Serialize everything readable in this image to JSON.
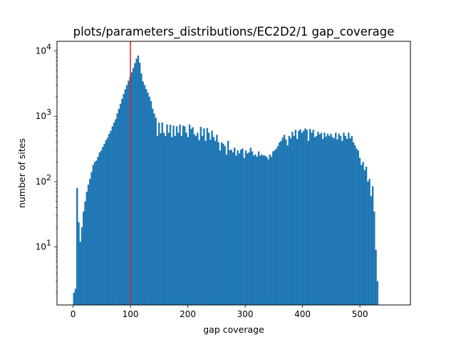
{
  "chart_data": {
    "type": "bar",
    "title": "plots/parameters_distributions/EC2D2/1 gap_coverage",
    "xlabel": "gap coverage",
    "ylabel": "number of sites",
    "y_scale": "log",
    "xlim": [
      -28,
      588
    ],
    "ylim": [
      1.3,
      14000
    ],
    "x_ticks": [
      0,
      100,
      200,
      300,
      400,
      500
    ],
    "x_tick_labels": [
      "0",
      "100",
      "200",
      "300",
      "400",
      "500"
    ],
    "y_ticks": [
      10,
      100,
      1000,
      10000
    ],
    "y_tick_labels": [
      {
        "base": "10",
        "exp": "1"
      },
      {
        "base": "10",
        "exp": "2"
      },
      {
        "base": "10",
        "exp": "3"
      },
      {
        "base": "10",
        "exp": "4"
      }
    ],
    "bin_start": 0,
    "bin_width": 2.8,
    "bar_color": "#1f77b4",
    "vline": {
      "x": 100,
      "color": "#d62728"
    },
    "grid": false,
    "values": [
      2.0,
      2.3,
      80,
      24,
      12,
      20,
      35,
      50,
      70,
      90,
      110,
      140,
      180,
      200,
      210,
      240,
      280,
      300,
      340,
      380,
      430,
      470,
      540,
      600,
      700,
      800,
      900,
      1100,
      1300,
      1550,
      1850,
      2200,
      2600,
      3000,
      3500,
      4000,
      4700,
      5500,
      6500,
      7600,
      8500,
      6600,
      4500,
      3400,
      3000,
      2600,
      2300,
      2000,
      1700,
      1300,
      1100,
      950,
      500,
      800,
      550,
      800,
      560,
      500,
      750,
      560,
      740,
      480,
      720,
      500,
      700,
      560,
      750,
      500,
      720,
      700,
      560,
      480,
      750,
      640,
      680,
      530,
      500,
      560,
      430,
      690,
      500,
      650,
      420,
      660,
      560,
      440,
      600,
      480,
      420,
      520,
      400,
      300,
      400,
      380,
      350,
      260,
      420,
      300,
      310,
      280,
      330,
      250,
      300,
      270,
      310,
      320,
      230,
      300,
      270,
      280,
      330,
      290,
      250,
      260,
      240,
      290,
      250,
      260,
      250,
      250,
      240,
      220,
      260,
      240,
      290,
      300,
      320,
      350,
      400,
      420,
      470,
      520,
      440,
      360,
      500,
      460,
      580,
      500,
      620,
      450,
      600,
      630,
      560,
      600,
      650,
      620,
      420,
      640,
      560,
      620,
      480,
      500,
      580,
      530,
      560,
      450,
      560,
      490,
      540,
      500,
      540,
      480,
      460,
      560,
      440,
      540,
      500,
      420,
      560,
      500,
      450,
      560,
      460,
      500,
      400,
      360,
      320,
      300,
      230,
      180,
      200,
      150,
      170,
      100,
      110,
      60,
      85,
      35,
      9,
      3.0
    ]
  }
}
